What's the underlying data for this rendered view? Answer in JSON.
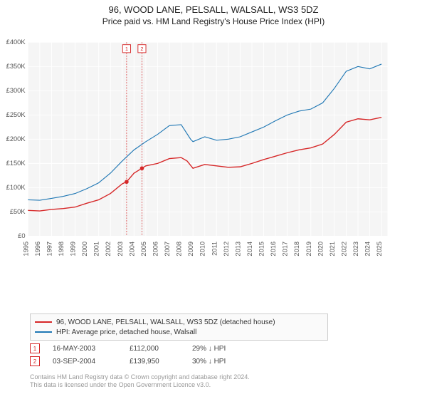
{
  "title": "96, WOOD LANE, PELSALL, WALSALL, WS3 5DZ",
  "subtitle": "Price paid vs. HM Land Registry's House Price Index (HPI)",
  "chart": {
    "type": "line",
    "background_color": "#f5f5f5",
    "grid_color": "#ffffff",
    "ylim": [
      0,
      400000
    ],
    "ytick_step": 50000,
    "ytick_labels": [
      "£0",
      "£50K",
      "£100K",
      "£150K",
      "£200K",
      "£250K",
      "£300K",
      "£350K",
      "£400K"
    ],
    "xlim": [
      1995,
      2025.5
    ],
    "xtick_step": 1,
    "xtick_labels": [
      "1995",
      "1996",
      "1997",
      "1998",
      "1999",
      "2000",
      "2001",
      "2002",
      "2003",
      "2004",
      "2005",
      "2006",
      "2007",
      "2008",
      "2009",
      "2010",
      "2011",
      "2012",
      "2013",
      "2014",
      "2015",
      "2016",
      "2017",
      "2018",
      "2019",
      "2020",
      "2021",
      "2022",
      "2023",
      "2024",
      "2025"
    ],
    "series": [
      {
        "name": "property",
        "label": "96, WOOD LANE, PELSALL, WALSALL, WS3 5DZ (detached house)",
        "color": "#d62728",
        "line_width": 1.5,
        "data": [
          [
            1995,
            53000
          ],
          [
            1996,
            52000
          ],
          [
            1997,
            55000
          ],
          [
            1998,
            57000
          ],
          [
            1999,
            60000
          ],
          [
            2000,
            68000
          ],
          [
            2001,
            75000
          ],
          [
            2002,
            88000
          ],
          [
            2003,
            108000
          ],
          [
            2003.37,
            112000
          ],
          [
            2004,
            130000
          ],
          [
            2004.67,
            139950
          ],
          [
            2005,
            145000
          ],
          [
            2006,
            150000
          ],
          [
            2007,
            160000
          ],
          [
            2008,
            162000
          ],
          [
            2008.5,
            155000
          ],
          [
            2009,
            140000
          ],
          [
            2010,
            148000
          ],
          [
            2011,
            145000
          ],
          [
            2012,
            142000
          ],
          [
            2013,
            143000
          ],
          [
            2014,
            150000
          ],
          [
            2015,
            158000
          ],
          [
            2016,
            165000
          ],
          [
            2017,
            172000
          ],
          [
            2018,
            178000
          ],
          [
            2019,
            182000
          ],
          [
            2020,
            190000
          ],
          [
            2021,
            210000
          ],
          [
            2022,
            235000
          ],
          [
            2023,
            242000
          ],
          [
            2024,
            240000
          ],
          [
            2025,
            245000
          ]
        ]
      },
      {
        "name": "hpi",
        "label": "HPI: Average price, detached house, Walsall",
        "color": "#1f77b4",
        "line_width": 1.2,
        "data": [
          [
            1995,
            75000
          ],
          [
            1996,
            74000
          ],
          [
            1997,
            78000
          ],
          [
            1998,
            82000
          ],
          [
            1999,
            88000
          ],
          [
            2000,
            98000
          ],
          [
            2001,
            110000
          ],
          [
            2002,
            130000
          ],
          [
            2003,
            155000
          ],
          [
            2004,
            178000
          ],
          [
            2005,
            195000
          ],
          [
            2006,
            210000
          ],
          [
            2007,
            228000
          ],
          [
            2008,
            230000
          ],
          [
            2008.8,
            200000
          ],
          [
            2009,
            195000
          ],
          [
            2010,
            205000
          ],
          [
            2011,
            198000
          ],
          [
            2012,
            200000
          ],
          [
            2013,
            205000
          ],
          [
            2014,
            215000
          ],
          [
            2015,
            225000
          ],
          [
            2016,
            238000
          ],
          [
            2017,
            250000
          ],
          [
            2018,
            258000
          ],
          [
            2019,
            262000
          ],
          [
            2020,
            275000
          ],
          [
            2021,
            305000
          ],
          [
            2022,
            340000
          ],
          [
            2023,
            350000
          ],
          [
            2024,
            345000
          ],
          [
            2025,
            355000
          ]
        ]
      }
    ],
    "sale_markers": [
      {
        "n": 1,
        "x": 2003.37,
        "y": 112000,
        "color": "#d62728"
      },
      {
        "n": 2,
        "x": 2004.67,
        "y": 139950,
        "color": "#d62728"
      }
    ],
    "marker_label_y_top": 395000,
    "label_fontsize": 10,
    "title_fontsize": 13
  },
  "legend": {
    "border_color": "#cccccc",
    "items": [
      {
        "color": "#d62728",
        "label": "96, WOOD LANE, PELSALL, WALSALL, WS3 5DZ (detached house)"
      },
      {
        "color": "#1f77b4",
        "label": "HPI: Average price, detached house, Walsall"
      }
    ]
  },
  "sales": [
    {
      "n": 1,
      "date": "16-MAY-2003",
      "price": "£112,000",
      "diff": "29% ↓ HPI",
      "color": "#d62728"
    },
    {
      "n": 2,
      "date": "03-SEP-2004",
      "price": "£139,950",
      "diff": "30% ↓ HPI",
      "color": "#d62728"
    }
  ],
  "footer": {
    "line1": "Contains HM Land Registry data © Crown copyright and database right 2024.",
    "line2": "This data is licensed under the Open Government Licence v3.0."
  }
}
